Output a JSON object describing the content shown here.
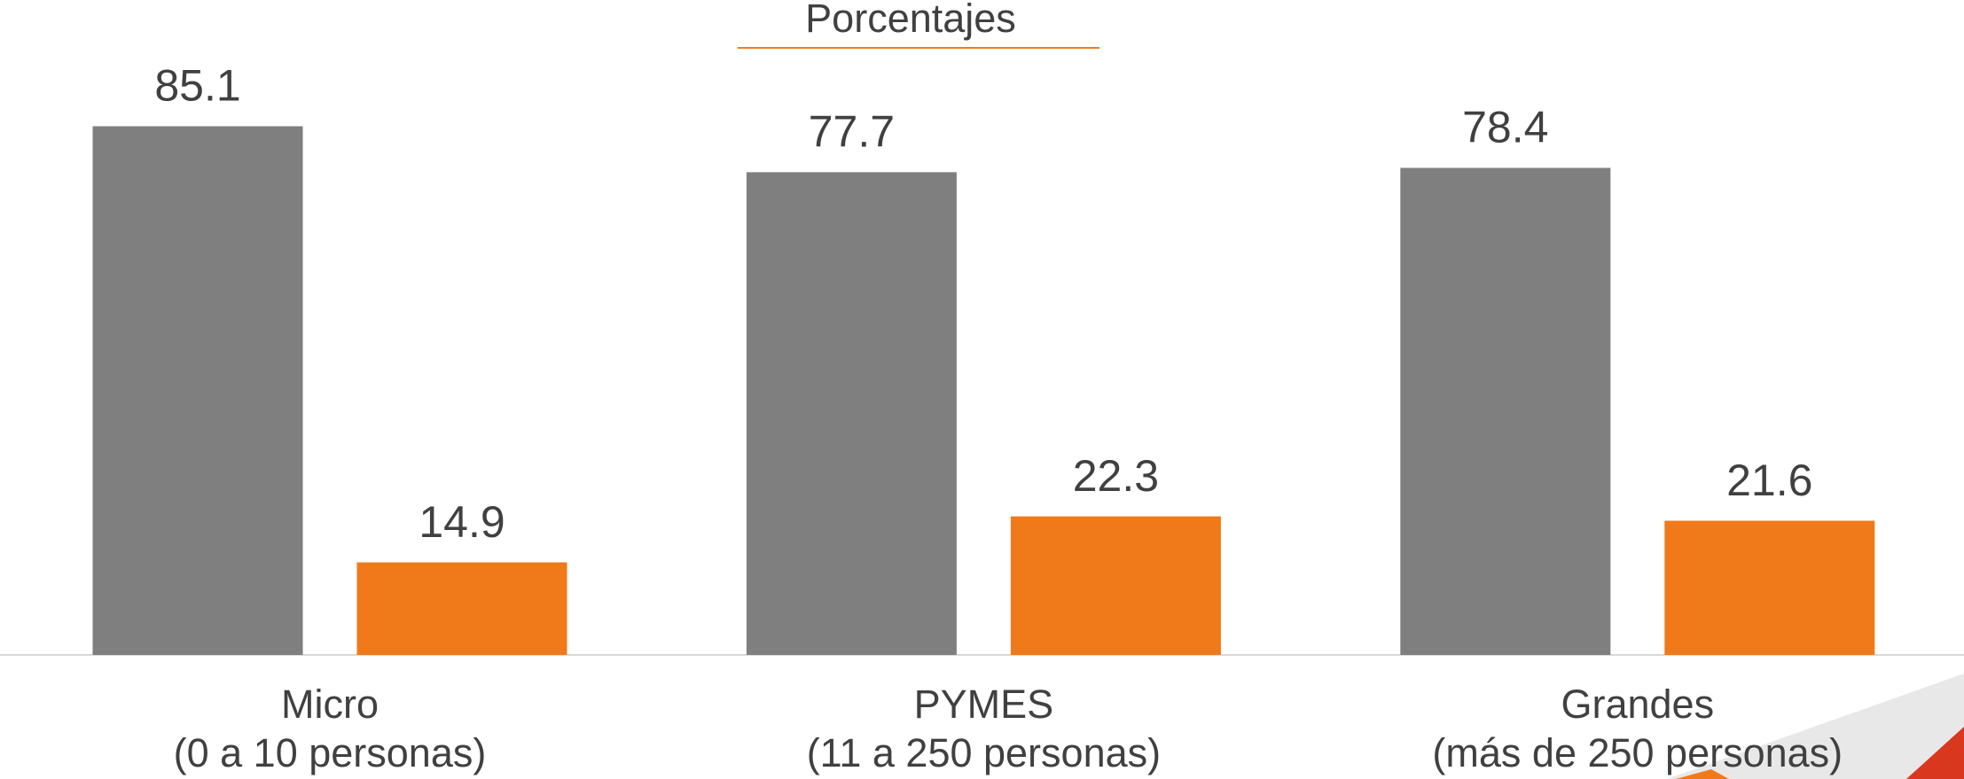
{
  "chart_data": {
    "type": "bar",
    "title": "Porcentajes",
    "categories": [
      [
        "Micro",
        "(0 a 10 personas)"
      ],
      [
        "PYMES",
        "(11 a 250 personas)"
      ],
      [
        "Grandes",
        "(más de 250 personas)"
      ]
    ],
    "series": [
      {
        "color": "#7f7f7f",
        "values": [
          85.1,
          77.7,
          78.4
        ]
      },
      {
        "color": "#f07a1a",
        "values": [
          14.9,
          22.3,
          21.6
        ]
      }
    ],
    "ylim": [
      0,
      100
    ]
  }
}
